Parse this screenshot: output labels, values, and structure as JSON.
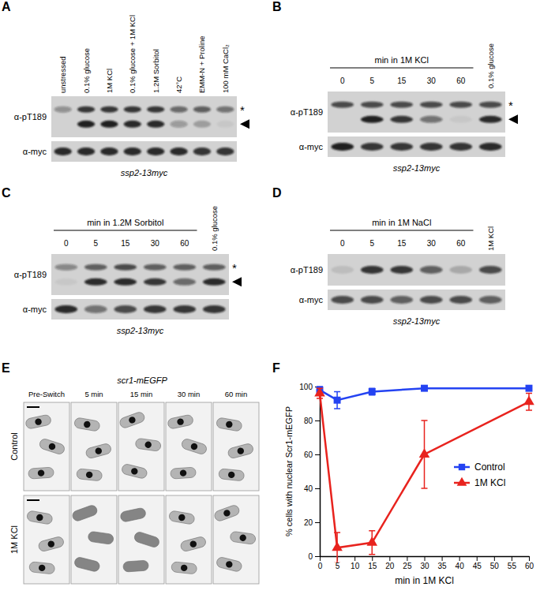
{
  "panels": [
    {
      "label": "A",
      "lane_labels": [
        "unstressed",
        "0.1% glucose",
        "1M KCl",
        "0.1% glucose + 1M KCl",
        "1.2M Sorbitol",
        "42°C",
        "EMM-N + Proline",
        "100 mM CaCl₂"
      ],
      "rows": [
        {
          "label": "α-pT189",
          "star": "*",
          "arrowhead": true,
          "upper": [
            0.35,
            0.8,
            0.8,
            0.8,
            0.8,
            0.55,
            0.6,
            0.5
          ],
          "lower": [
            0,
            0.95,
            0.95,
            0.9,
            0.9,
            0.3,
            0.25,
            0.05
          ]
        },
        {
          "label": "α-myc",
          "bands": [
            0.9,
            0.9,
            0.9,
            0.9,
            0.9,
            0.9,
            0.85,
            0.85
          ]
        }
      ],
      "strain": "ssp2-13myc"
    },
    {
      "label": "B",
      "time_header": "min in 1M KCl",
      "times": [
        0,
        5,
        15,
        30,
        60
      ],
      "control_lane": "0.1% glucose",
      "rows": [
        {
          "label": "α-pT189",
          "star": "*",
          "arrowhead": true,
          "upper": [
            0.7,
            0.7,
            0.7,
            0.7,
            0.7,
            0.7
          ],
          "lower": [
            0,
            0.95,
            0.8,
            0.5,
            0.05,
            0.9
          ]
        },
        {
          "label": "α-myc",
          "bands": [
            0.95,
            0.8,
            0.8,
            0.85,
            0.85,
            0.9
          ]
        }
      ],
      "strain": "ssp2-13myc"
    },
    {
      "label": "C",
      "time_header": "min in 1.2M Sorbitol",
      "times": [
        0,
        5,
        15,
        30,
        60
      ],
      "control_lane": "0.1% glucose",
      "rows": [
        {
          "label": "α-pT189",
          "star": "*",
          "arrowhead": true,
          "upper": [
            0.4,
            0.6,
            0.7,
            0.6,
            0.6,
            0.6
          ],
          "lower": [
            0.05,
            0.9,
            0.9,
            0.8,
            0.55,
            0.9
          ]
        },
        {
          "label": "α-myc",
          "bands": [
            0.9,
            0.5,
            0.7,
            0.8,
            0.8,
            0.8
          ]
        }
      ],
      "strain": "ssp2-13myc"
    },
    {
      "label": "D",
      "time_header": "min in 1M NaCl",
      "times": [
        0,
        5,
        15,
        30,
        60
      ],
      "control_lane": "1M KCl",
      "rows": [
        {
          "label": "α-pT189",
          "bands": [
            0.1,
            0.85,
            0.8,
            0.6,
            0.2,
            0.7
          ]
        },
        {
          "label": "α-myc",
          "bands": [
            0.7,
            0.7,
            0.6,
            0.7,
            0.7,
            0.6
          ]
        }
      ],
      "strain": "ssp2-13myc"
    }
  ],
  "microscopy": {
    "label": "E",
    "title": "scr1-mEGFP",
    "columns": [
      "Pre-Switch",
      "5 min",
      "15 min",
      "30 min",
      "60 min"
    ],
    "rows": [
      {
        "label": "Control",
        "nuclear": [
          true,
          true,
          true,
          true,
          true
        ]
      },
      {
        "label": "1M KCl",
        "nuclear": [
          true,
          false,
          false,
          true,
          true
        ]
      }
    ]
  },
  "chart_data": {
    "type": "line",
    "panel_label": "F",
    "x_label": "min in 1M KCl",
    "y_label": "% cells with nuclear Scr1-mEGFP",
    "x": [
      0,
      5,
      15,
      30,
      60
    ],
    "series": [
      {
        "name": "Control",
        "color": "#2443f2",
        "marker": "square",
        "values": [
          98,
          92,
          97,
          99,
          99
        ],
        "errors": [
          2,
          5,
          2,
          1,
          1
        ]
      },
      {
        "name": "1M KCl",
        "color": "#e8231e",
        "marker": "triangle",
        "values": [
          96,
          5,
          8,
          60,
          91
        ],
        "errors": [
          3,
          9,
          7,
          20,
          5
        ]
      }
    ],
    "xlim": [
      0,
      60
    ],
    "xticks": [
      0,
      5,
      10,
      15,
      20,
      25,
      30,
      35,
      40,
      45,
      50,
      55,
      60
    ],
    "ylim": [
      0,
      100
    ],
    "yticks": [
      0,
      20,
      40,
      60,
      80,
      100
    ],
    "grid": false,
    "legend": "right"
  }
}
